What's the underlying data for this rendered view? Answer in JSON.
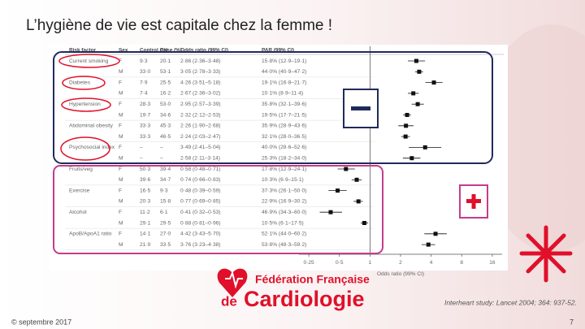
{
  "title": "L’hygiène de vie est capitale chez la femme !",
  "table": {
    "header": [
      "Risk factor",
      "Sex",
      "Control (%)",
      "Case (%)",
      "Odds ratio (99% CI)",
      "PAR (99% CI)"
    ],
    "rows": [
      [
        "Current smoking",
        "F",
        "9·3",
        "20·1",
        "2·86 (2·36–3·48)",
        "15·8% (12·9–19·1)"
      ],
      [
        null,
        "M",
        "33·0",
        "53·1",
        "3·05 (2·78–3·33)",
        "44·0% (40·9–47·2)"
      ],
      [
        "Diabetes",
        "F",
        "7·9",
        "25·5",
        "4·26 (3·51–5·18)",
        "19·1% (16·8–21·7)"
      ],
      [
        null,
        "M",
        "7·4",
        "16·2",
        "2·67 (2·36–3·02)",
        "10·1% (8·9–11·4)"
      ],
      [
        "Hypertension",
        "F",
        "28·3",
        "53·0",
        "2·95 (2·57–3·39)",
        "35·8% (32·1–39·6)"
      ],
      [
        null,
        "M",
        "19·7",
        "34·6",
        "2·32 (2·12–2·53)",
        "19·5% (17·7–21·5)"
      ],
      [
        "Abdominal obesity",
        "F",
        "33·3",
        "45·3",
        "2·26 (1·90–2·68)",
        "35·9% (28·9–43·6)"
      ],
      [
        null,
        "M",
        "33·3",
        "46·5",
        "2·24 (2·03–2·47)",
        "32·1% (28·0–36·5)"
      ],
      [
        "Psychosocial index",
        "F",
        "–",
        "–",
        "3·49 (2·41–5·04)",
        "40·0% (28·6–52·6)"
      ],
      [
        null,
        "M",
        "–",
        "–",
        "2·58 (2·11–3·14)",
        "25·3% (18·2–34·0)"
      ],
      [
        "Fruits/veg",
        "F",
        "50·3",
        "39·4",
        "0·58 (0·48–0·71)",
        "17·8% (12·9–24·1)"
      ],
      [
        null,
        "M",
        "39·6",
        "34·7",
        "0·74 (0·66–0·83)",
        "10·3% (6·9–15·1)"
      ],
      [
        "Exercise",
        "F",
        "16·5",
        "9·3",
        "0·48 (0·39–0·59)",
        "37·3% (26·1–50·0)"
      ],
      [
        null,
        "M",
        "20·3",
        "15·8",
        "0·77 (0·69–0·85)",
        "22·9% (16·9–30·2)"
      ],
      [
        "Alcohol",
        "F",
        "11·2",
        "6·1",
        "0·41 (0·32–0·53)",
        "46·9% (34·3–60·0)"
      ],
      [
        null,
        "M",
        "29·1",
        "29·5",
        "0·88 (0·81–0·96)",
        "10·5% (6·1–17·5)"
      ],
      [
        "ApoB/ApoA1 ratio",
        "F",
        "14·1",
        "27·0",
        "4·42 (3·43–5·70)",
        "52·1% (44·0–60·2)"
      ],
      [
        null,
        "M",
        "21·9",
        "33·5",
        "3·76 (3·23–4·38)",
        "53·8% (48·3–59·2)"
      ]
    ]
  },
  "forest": {
    "xlabel": "Odds ratio (99% CI)",
    "xlim": [
      0.2,
      20
    ],
    "xticks": [
      {
        "value": 0.25,
        "label": "0·25"
      },
      {
        "value": 0.5,
        "label": "0·5"
      },
      1,
      2,
      4,
      8,
      16
    ],
    "points": [
      [
        2.86,
        2.36,
        3.48
      ],
      [
        3.05,
        2.78,
        3.33
      ],
      [
        4.26,
        3.51,
        5.18
      ],
      [
        2.67,
        2.36,
        3.02
      ],
      [
        2.95,
        2.57,
        3.39
      ],
      [
        2.32,
        2.12,
        2.53
      ],
      [
        2.26,
        1.9,
        2.68
      ],
      [
        2.24,
        2.03,
        2.47
      ],
      [
        3.49,
        2.41,
        5.04
      ],
      [
        2.58,
        2.11,
        3.14
      ],
      [
        0.58,
        0.48,
        0.71
      ],
      [
        0.74,
        0.66,
        0.83
      ],
      [
        0.48,
        0.39,
        0.59
      ],
      [
        0.77,
        0.69,
        0.85
      ],
      [
        0.41,
        0.32,
        0.53
      ],
      [
        0.88,
        0.81,
        0.96
      ],
      [
        4.42,
        3.43,
        5.7
      ],
      [
        3.76,
        3.23,
        4.38
      ]
    ]
  },
  "logo": {
    "line1": "Fédération Française",
    "line2a": "de",
    "line2b": "Cardiologie"
  },
  "citation": "Interheart study: Lancet 2004; 364: 937-52.",
  "footer": {
    "date": "© septembre 2017",
    "page": 7
  }
}
